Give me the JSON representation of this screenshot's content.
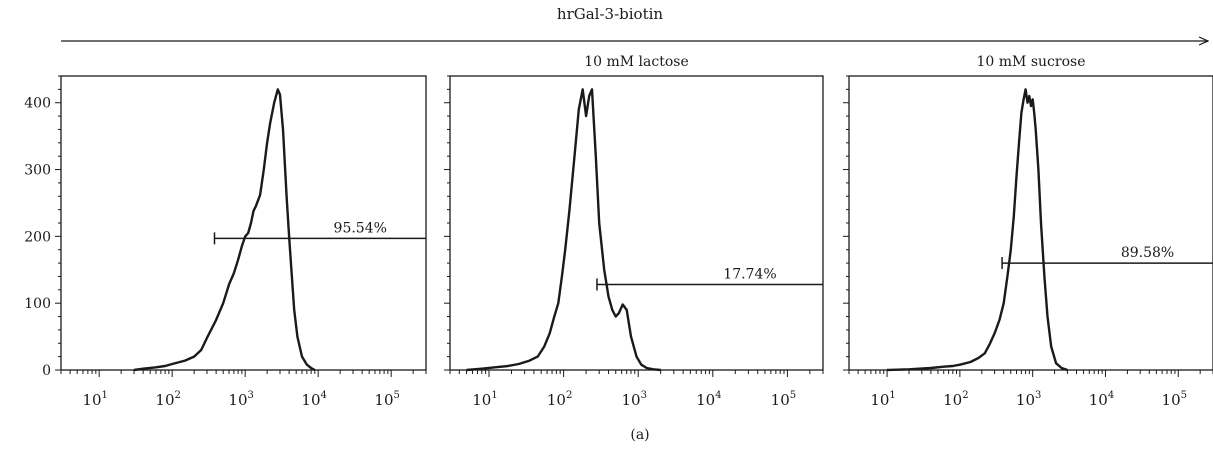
{
  "figure": {
    "header_label": "hrGal-3-biotin",
    "caption": "(a)"
  },
  "chart_data": [
    {
      "type": "histogram",
      "title": "",
      "xscale": "log",
      "xlim": [
        3,
        300000
      ],
      "ylim": [
        0,
        440
      ],
      "y_ticks": [
        "0",
        "100",
        "200",
        "300",
        "400"
      ],
      "x_ticks": [
        {
          "base": "10",
          "exp": "1"
        },
        {
          "base": "10",
          "exp": "2"
        },
        {
          "base": "10",
          "exp": "3"
        },
        {
          "base": "10",
          "exp": "4"
        },
        {
          "base": "10",
          "exp": "5"
        }
      ],
      "gate": {
        "label": "95.54%",
        "start": 380,
        "end": 300000,
        "y": 197
      },
      "curve": [
        [
          30,
          0
        ],
        [
          40,
          2
        ],
        [
          60,
          4
        ],
        [
          80,
          6
        ],
        [
          100,
          9
        ],
        [
          150,
          14
        ],
        [
          200,
          20
        ],
        [
          250,
          30
        ],
        [
          300,
          48
        ],
        [
          400,
          75
        ],
        [
          500,
          100
        ],
        [
          600,
          128
        ],
        [
          700,
          145
        ],
        [
          800,
          165
        ],
        [
          900,
          185
        ],
        [
          1000,
          200
        ],
        [
          1100,
          205
        ],
        [
          1200,
          220
        ],
        [
          1300,
          238
        ],
        [
          1400,
          245
        ],
        [
          1600,
          262
        ],
        [
          1800,
          300
        ],
        [
          2000,
          340
        ],
        [
          2200,
          370
        ],
        [
          2500,
          400
        ],
        [
          2800,
          420
        ],
        [
          3000,
          412
        ],
        [
          3300,
          360
        ],
        [
          3700,
          260
        ],
        [
          4000,
          200
        ],
        [
          4300,
          150
        ],
        [
          4700,
          90
        ],
        [
          5200,
          50
        ],
        [
          6000,
          20
        ],
        [
          7000,
          8
        ],
        [
          8000,
          3
        ],
        [
          9000,
          0
        ]
      ]
    },
    {
      "type": "histogram",
      "title": "10 mM lactose",
      "xscale": "log",
      "xlim": [
        3,
        300000
      ],
      "ylim": [
        0,
        440
      ],
      "y_ticks": [
        "0",
        "100",
        "200",
        "300",
        "400"
      ],
      "x_ticks": [
        {
          "base": "10",
          "exp": "1"
        },
        {
          "base": "10",
          "exp": "2"
        },
        {
          "base": "10",
          "exp": "3"
        },
        {
          "base": "10",
          "exp": "4"
        },
        {
          "base": "10",
          "exp": "5"
        }
      ],
      "gate": {
        "label": "17.74%",
        "start": 280,
        "end": 300000,
        "y": 128
      },
      "curve": [
        [
          5,
          0
        ],
        [
          8,
          2
        ],
        [
          12,
          4
        ],
        [
          18,
          6
        ],
        [
          25,
          9
        ],
        [
          35,
          14
        ],
        [
          45,
          20
        ],
        [
          55,
          35
        ],
        [
          65,
          55
        ],
        [
          75,
          80
        ],
        [
          85,
          100
        ],
        [
          95,
          140
        ],
        [
          105,
          180
        ],
        [
          120,
          240
        ],
        [
          140,
          320
        ],
        [
          160,
          390
        ],
        [
          180,
          420
        ],
        [
          200,
          380
        ],
        [
          220,
          410
        ],
        [
          240,
          420
        ],
        [
          270,
          320
        ],
        [
          300,
          220
        ],
        [
          350,
          150
        ],
        [
          400,
          110
        ],
        [
          450,
          90
        ],
        [
          500,
          80
        ],
        [
          550,
          85
        ],
        [
          620,
          98
        ],
        [
          700,
          90
        ],
        [
          800,
          50
        ],
        [
          950,
          20
        ],
        [
          1100,
          8
        ],
        [
          1300,
          3
        ],
        [
          1600,
          1
        ],
        [
          2000,
          0
        ]
      ]
    },
    {
      "type": "histogram",
      "title": "10 mM sucrose",
      "xscale": "log",
      "xlim": [
        3,
        300000
      ],
      "ylim": [
        0,
        440
      ],
      "y_ticks": [
        "0",
        "100",
        "200",
        "300",
        "400"
      ],
      "x_ticks": [
        {
          "base": "10",
          "exp": "1"
        },
        {
          "base": "10",
          "exp": "2"
        },
        {
          "base": "10",
          "exp": "3"
        },
        {
          "base": "10",
          "exp": "4"
        },
        {
          "base": "10",
          "exp": "5"
        }
      ],
      "gate": {
        "label": "89.58%",
        "start": 380,
        "end": 300000,
        "y": 160
      },
      "curve": [
        [
          10,
          0
        ],
        [
          20,
          1
        ],
        [
          40,
          3
        ],
        [
          60,
          5
        ],
        [
          80,
          6
        ],
        [
          100,
          8
        ],
        [
          140,
          12
        ],
        [
          180,
          18
        ],
        [
          220,
          25
        ],
        [
          260,
          40
        ],
        [
          300,
          55
        ],
        [
          350,
          75
        ],
        [
          400,
          100
        ],
        [
          450,
          140
        ],
        [
          500,
          180
        ],
        [
          550,
          230
        ],
        [
          600,
          290
        ],
        [
          650,
          340
        ],
        [
          700,
          385
        ],
        [
          750,
          405
        ],
        [
          800,
          420
        ],
        [
          850,
          400
        ],
        [
          900,
          410
        ],
        [
          950,
          395
        ],
        [
          1000,
          405
        ],
        [
          1050,
          385
        ],
        [
          1100,
          360
        ],
        [
          1200,
          300
        ],
        [
          1300,
          220
        ],
        [
          1450,
          140
        ],
        [
          1600,
          80
        ],
        [
          1800,
          35
        ],
        [
          2100,
          10
        ],
        [
          2500,
          3
        ],
        [
          3000,
          0
        ]
      ]
    }
  ]
}
